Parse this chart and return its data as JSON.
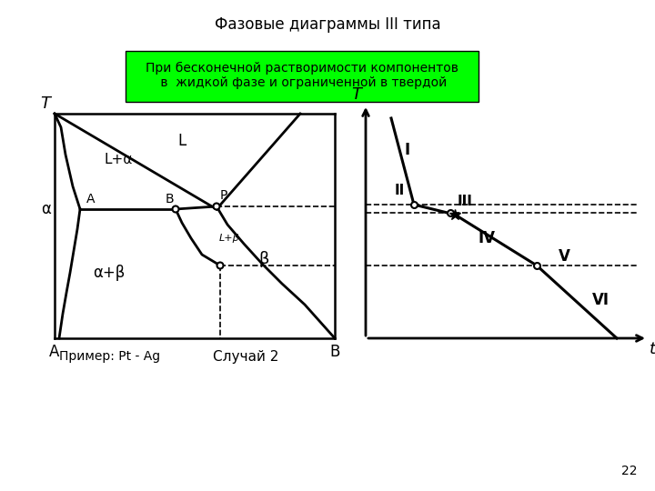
{
  "title": "Фазовые диаграммы III типа",
  "subtitle": "При бесконечной растворимости компонентов\n в  жидкой фазе и ограниченной в твердой",
  "subtitle_bg": "#00ff00",
  "bg_color": "#ffffff",
  "page_number": "22",
  "example_text": "Пример: Pt - Ag",
  "case_text": "Случай 2"
}
